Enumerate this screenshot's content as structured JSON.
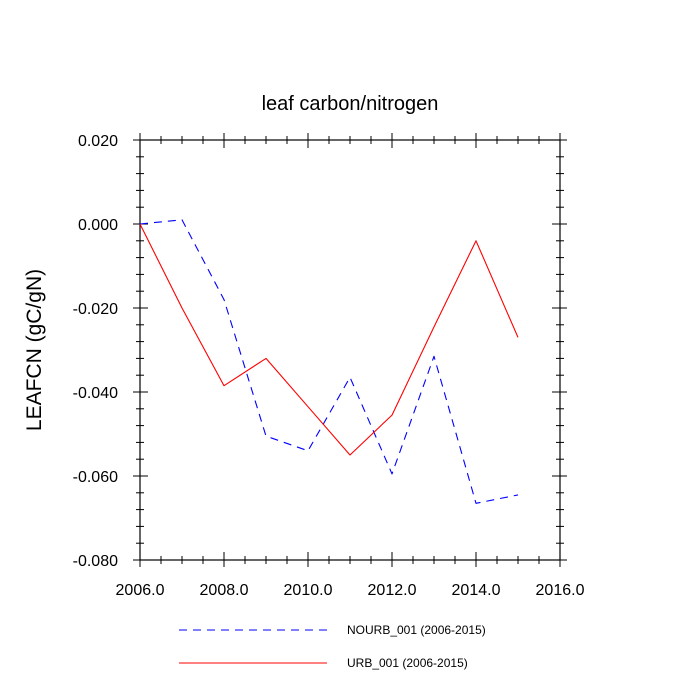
{
  "chart_data": {
    "type": "line",
    "title": "leaf carbon/nitrogen",
    "xlabel": "",
    "ylabel": "LEAFCN  (gC/gN)",
    "xlim": [
      2006.0,
      2016.0
    ],
    "ylim": [
      -0.08,
      0.02
    ],
    "x_ticks": [
      2006.0,
      2008.0,
      2010.0,
      2012.0,
      2014.0,
      2016.0
    ],
    "x_tick_labels": [
      "2006.0",
      "2008.0",
      "2010.0",
      "2012.0",
      "2014.0",
      "2016.0"
    ],
    "y_ticks": [
      0.02,
      0.0,
      -0.02,
      -0.04,
      -0.06,
      -0.08
    ],
    "y_tick_labels": [
      "0.020",
      "0.000",
      "-0.020",
      "-0.040",
      "-0.060",
      "-0.080"
    ],
    "grid": false,
    "legend_position": "bottom",
    "series": [
      {
        "name": "NOURB_001 (2006-2015)",
        "color": "#0000ff",
        "line_style": "dashed",
        "x": [
          2006,
          2007,
          2008,
          2009,
          2010,
          2011,
          2012,
          2013,
          2014,
          2015
        ],
        "values": [
          0.0,
          0.001,
          -0.018,
          -0.0505,
          -0.054,
          -0.0365,
          -0.0595,
          -0.0315,
          -0.0665,
          -0.0645
        ]
      },
      {
        "name": "URB_001 (2006-2015)",
        "color": "#ff0000",
        "line_style": "solid",
        "x": [
          2006,
          2007,
          2008,
          2009,
          2010,
          2011,
          2012,
          2013,
          2014,
          2015
        ],
        "values": [
          0.0,
          -0.02,
          -0.0385,
          -0.032,
          -0.0435,
          -0.055,
          -0.0455,
          -0.0245,
          -0.004,
          -0.027
        ]
      }
    ]
  }
}
